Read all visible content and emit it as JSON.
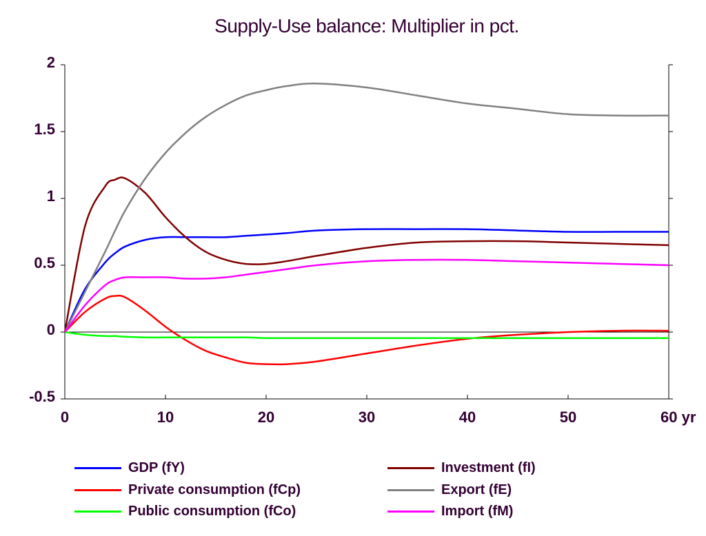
{
  "chart_data": {
    "type": "line",
    "title": "Supply-Use balance: Multiplier in pct.",
    "xlabel": "",
    "ylabel": "",
    "xlim": [
      0,
      60
    ],
    "ylim": [
      -0.5,
      2
    ],
    "x_ticks": [
      "0",
      "10",
      "20",
      "30",
      "40",
      "50",
      "60 yr"
    ],
    "x_tick_values": [
      0,
      10,
      20,
      30,
      40,
      50,
      60
    ],
    "y_ticks": [
      "-0.5",
      "0",
      "0.5",
      "1",
      "1.5",
      "2"
    ],
    "y_tick_values": [
      -0.5,
      0,
      0.5,
      1,
      1.5,
      2
    ],
    "grid": false,
    "zero_line": true,
    "legend_position": "bottom",
    "x": [
      0,
      2,
      4,
      5,
      6,
      8,
      10,
      12,
      14,
      16,
      18,
      20,
      22,
      25,
      30,
      35,
      40,
      45,
      50,
      55,
      60
    ],
    "series": [
      {
        "name": "GDP (fY)",
        "color": "#0000ff",
        "values": [
          0,
          0.32,
          0.52,
          0.59,
          0.64,
          0.69,
          0.71,
          0.71,
          0.71,
          0.71,
          0.72,
          0.73,
          0.74,
          0.76,
          0.77,
          0.77,
          0.77,
          0.76,
          0.75,
          0.75,
          0.75
        ]
      },
      {
        "name": "Investment (fI)",
        "color": "#800000",
        "values": [
          0,
          0.79,
          1.09,
          1.14,
          1.15,
          1.04,
          0.86,
          0.71,
          0.6,
          0.54,
          0.51,
          0.51,
          0.53,
          0.57,
          0.63,
          0.67,
          0.68,
          0.68,
          0.67,
          0.66,
          0.65
        ]
      },
      {
        "name": "Private consumption (fCp)",
        "color": "#ff0000",
        "values": [
          0,
          0.15,
          0.25,
          0.27,
          0.26,
          0.16,
          0.04,
          -0.06,
          -0.14,
          -0.19,
          -0.23,
          -0.24,
          -0.24,
          -0.22,
          -0.16,
          -0.1,
          -0.05,
          -0.02,
          0.0,
          0.01,
          0.01
        ]
      },
      {
        "name": "Export (fE)",
        "color": "#808080",
        "values": [
          0,
          0.3,
          0.6,
          0.76,
          0.91,
          1.15,
          1.34,
          1.49,
          1.61,
          1.7,
          1.77,
          1.81,
          1.84,
          1.86,
          1.83,
          1.77,
          1.71,
          1.67,
          1.63,
          1.62,
          1.62
        ]
      },
      {
        "name": "Public consumption (fCo)",
        "color": "#00ff00",
        "values": [
          0,
          -0.02,
          -0.03,
          -0.03,
          -0.035,
          -0.04,
          -0.04,
          -0.04,
          -0.04,
          -0.04,
          -0.04,
          -0.045,
          -0.045,
          -0.045,
          -0.045,
          -0.045,
          -0.045,
          -0.045,
          -0.045,
          -0.045,
          -0.045
        ]
      },
      {
        "name": "Import (fM)",
        "color": "#ff00ff",
        "values": [
          0,
          0.2,
          0.35,
          0.39,
          0.41,
          0.41,
          0.41,
          0.4,
          0.4,
          0.41,
          0.43,
          0.45,
          0.47,
          0.5,
          0.53,
          0.54,
          0.54,
          0.53,
          0.52,
          0.51,
          0.5
        ]
      }
    ]
  }
}
